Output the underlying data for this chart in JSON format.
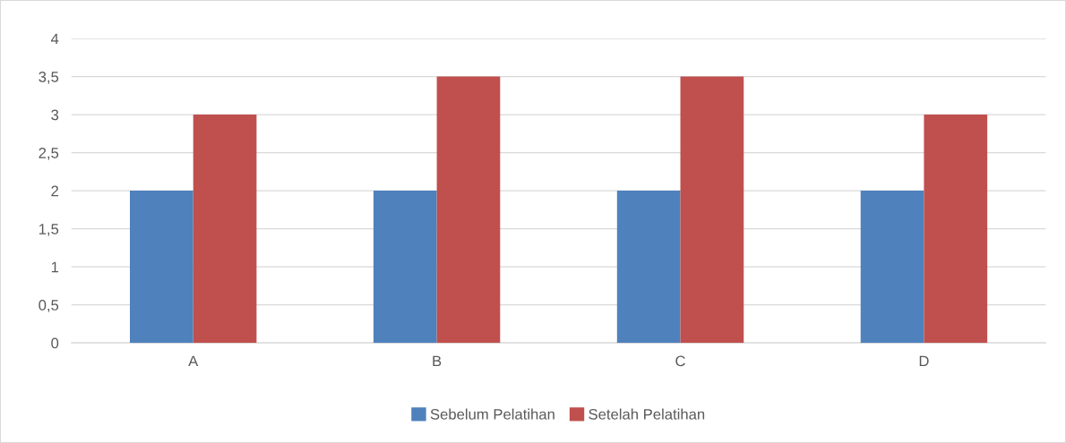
{
  "chart_data": {
    "type": "bar",
    "categories": [
      "A",
      "B",
      "C",
      "D"
    ],
    "series": [
      {
        "name": "Sebelum Pelatihan",
        "color": "#4f81bd",
        "values": [
          2,
          2,
          2,
          2
        ]
      },
      {
        "name": "Setelah Pelatihan",
        "color": "#c0504d",
        "values": [
          3,
          3.5,
          3.5,
          3
        ]
      }
    ],
    "ylim": [
      0,
      4
    ],
    "yticks": [
      0,
      {
        "value": 0.5,
        "label": "0,5"
      },
      1,
      {
        "value": 1.5,
        "label": "1,5"
      },
      2,
      {
        "value": 2.5,
        "label": "2,5"
      },
      3,
      {
        "value": 3.5,
        "label": "3,5"
      },
      4
    ],
    "grid": "y",
    "legend": "bottom"
  }
}
